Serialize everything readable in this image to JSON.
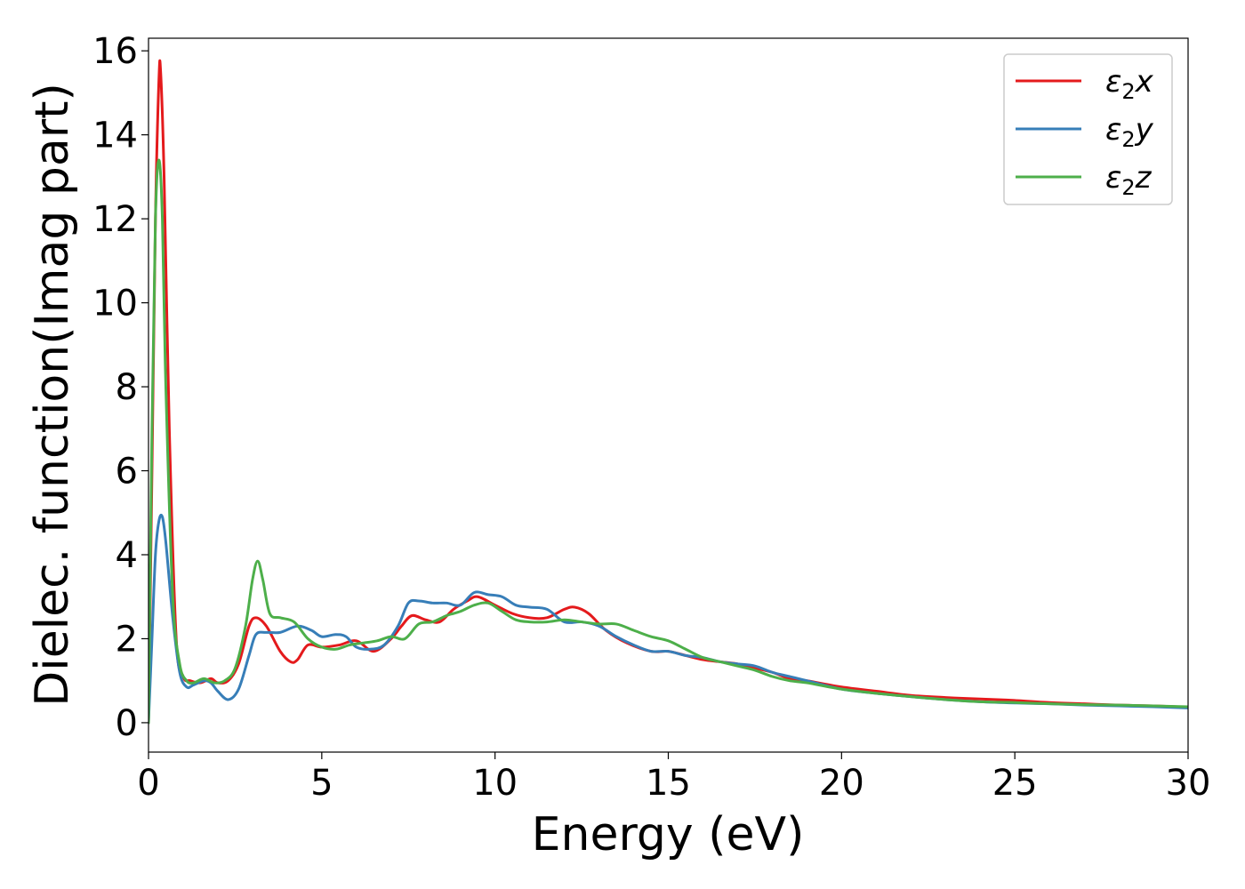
{
  "chart_data": {
    "type": "line",
    "xlabel": "Energy (eV)",
    "ylabel": "Dielec. function(Imag part)",
    "xlim": [
      0,
      30
    ],
    "ylim": [
      -0.7,
      16.3
    ],
    "xticks": [
      0,
      5,
      10,
      15,
      20,
      25,
      30
    ],
    "yticks": [
      0,
      2,
      4,
      6,
      8,
      10,
      12,
      14,
      16
    ],
    "grid": false,
    "legend_position": "top-right",
    "series": [
      {
        "name": "ε₂x",
        "legend": {
          "base": "ε",
          "sub": "2",
          "axis": "x"
        },
        "color": "#e41a1c",
        "x": [
          0,
          0.1,
          0.2,
          0.3,
          0.35,
          0.45,
          0.6,
          0.8,
          1.0,
          1.2,
          1.5,
          1.8,
          2.0,
          2.3,
          2.6,
          2.9,
          3.1,
          3.4,
          3.8,
          4.1,
          4.3,
          4.6,
          5.0,
          5.5,
          6.0,
          6.5,
          7.0,
          7.3,
          7.6,
          8.0,
          8.4,
          8.8,
          9.2,
          9.5,
          10.0,
          10.5,
          11.0,
          11.5,
          12.0,
          12.3,
          12.7,
          13.2,
          13.8,
          14.5,
          15.0,
          15.5,
          16.0,
          16.5,
          17.0,
          17.5,
          18.0,
          18.5,
          19.0,
          20.0,
          21.0,
          22.0,
          23.0,
          23.5,
          24.5,
          25.0,
          26.0,
          27.0,
          28.0,
          29.0,
          30.0
        ],
        "values": [
          0.0,
          6.0,
          12.0,
          15.3,
          15.5,
          13.0,
          7.0,
          2.0,
          1.1,
          1.0,
          0.95,
          1.05,
          0.95,
          1.0,
          1.4,
          2.3,
          2.5,
          2.3,
          1.7,
          1.45,
          1.5,
          1.85,
          1.8,
          1.85,
          1.95,
          1.7,
          2.0,
          2.3,
          2.55,
          2.45,
          2.4,
          2.7,
          2.9,
          3.0,
          2.8,
          2.6,
          2.5,
          2.5,
          2.7,
          2.75,
          2.6,
          2.2,
          1.9,
          1.7,
          1.7,
          1.6,
          1.5,
          1.45,
          1.4,
          1.3,
          1.2,
          1.05,
          1.0,
          0.85,
          0.75,
          0.65,
          0.6,
          0.58,
          0.55,
          0.53,
          0.48,
          0.45,
          0.42,
          0.4,
          0.37
        ]
      },
      {
        "name": "ε₂y",
        "legend": {
          "base": "ε",
          "sub": "2",
          "axis": "y"
        },
        "color": "#377eb8",
        "x": [
          0,
          0.1,
          0.2,
          0.3,
          0.4,
          0.5,
          0.7,
          0.9,
          1.1,
          1.3,
          1.6,
          1.8,
          2.0,
          2.3,
          2.6,
          2.9,
          3.1,
          3.4,
          3.8,
          4.3,
          4.7,
          5.0,
          5.4,
          5.7,
          6.0,
          6.4,
          6.8,
          7.2,
          7.5,
          7.8,
          8.2,
          8.6,
          9.0,
          9.4,
          9.8,
          10.2,
          10.6,
          11.0,
          11.5,
          12.0,
          12.5,
          13.0,
          13.5,
          14.0,
          14.5,
          15.0,
          15.5,
          16.0,
          16.5,
          17.0,
          17.5,
          18.0,
          18.5,
          19.0,
          20.0,
          21.0,
          22.0,
          23.0,
          24.0,
          25.0,
          26.0,
          27.0,
          28.0,
          29.0,
          30.0
        ],
        "values": [
          0.0,
          2.0,
          4.0,
          4.8,
          4.9,
          4.3,
          2.5,
          1.2,
          0.85,
          0.9,
          1.0,
          0.95,
          0.75,
          0.55,
          0.8,
          1.6,
          2.1,
          2.15,
          2.15,
          2.3,
          2.2,
          2.05,
          2.1,
          2.05,
          1.8,
          1.75,
          1.85,
          2.3,
          2.85,
          2.9,
          2.85,
          2.85,
          2.8,
          3.1,
          3.05,
          3.0,
          2.8,
          2.75,
          2.7,
          2.4,
          2.4,
          2.3,
          2.05,
          1.85,
          1.7,
          1.7,
          1.6,
          1.55,
          1.45,
          1.4,
          1.35,
          1.2,
          1.1,
          1.0,
          0.8,
          0.7,
          0.62,
          0.55,
          0.5,
          0.47,
          0.45,
          0.42,
          0.4,
          0.38,
          0.35
        ]
      },
      {
        "name": "ε₂z",
        "legend": {
          "base": "ε",
          "sub": "2",
          "axis": "z"
        },
        "color": "#4daf4a",
        "x": [
          0,
          0.1,
          0.2,
          0.3,
          0.4,
          0.5,
          0.7,
          0.9,
          1.1,
          1.3,
          1.6,
          1.9,
          2.2,
          2.5,
          2.8,
          3.0,
          3.15,
          3.3,
          3.5,
          3.8,
          4.2,
          4.6,
          5.0,
          5.4,
          5.8,
          6.2,
          6.6,
          7.0,
          7.4,
          7.8,
          8.2,
          8.6,
          9.0,
          9.4,
          9.8,
          10.2,
          10.6,
          11.0,
          11.5,
          12.0,
          12.5,
          13.0,
          13.5,
          14.0,
          14.5,
          15.0,
          15.5,
          16.0,
          16.5,
          17.0,
          17.5,
          18.0,
          18.5,
          19.0,
          20.0,
          21.0,
          22.0,
          23.0,
          24.0,
          25.0,
          26.0,
          27.0,
          28.0,
          29.0,
          30.0
        ],
        "values": [
          0.0,
          7.0,
          12.0,
          13.4,
          12.0,
          8.0,
          3.0,
          1.4,
          1.0,
          0.95,
          1.05,
          0.95,
          1.0,
          1.3,
          2.3,
          3.4,
          3.85,
          3.4,
          2.6,
          2.5,
          2.4,
          2.0,
          1.8,
          1.75,
          1.85,
          1.9,
          1.95,
          2.05,
          2.0,
          2.35,
          2.4,
          2.55,
          2.65,
          2.8,
          2.85,
          2.65,
          2.45,
          2.4,
          2.4,
          2.45,
          2.4,
          2.35,
          2.35,
          2.2,
          2.05,
          1.95,
          1.75,
          1.55,
          1.45,
          1.35,
          1.25,
          1.1,
          1.0,
          0.95,
          0.8,
          0.7,
          0.62,
          0.55,
          0.5,
          0.48,
          0.45,
          0.43,
          0.42,
          0.4,
          0.38
        ]
      }
    ]
  }
}
